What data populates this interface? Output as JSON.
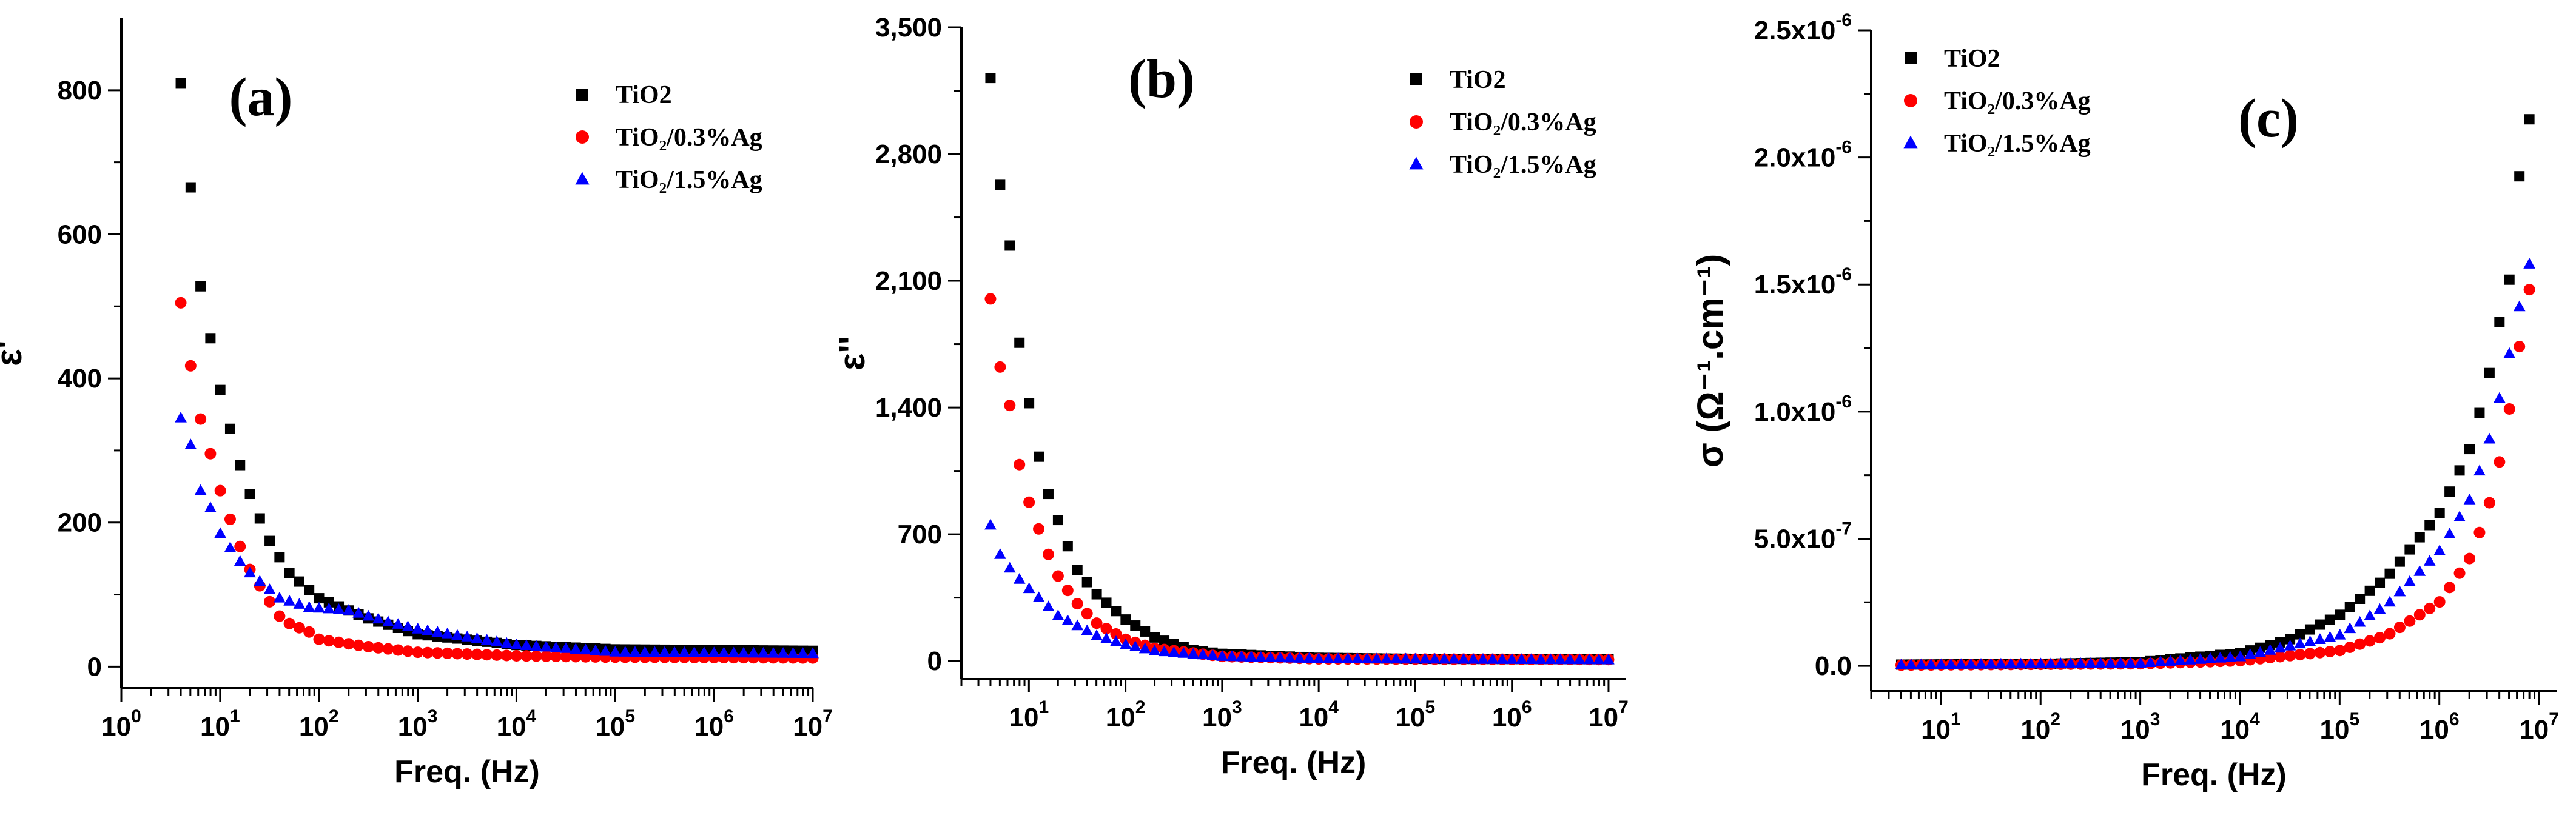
{
  "colors": {
    "TiO2": "#000000",
    "TiO2/0.3%Ag": "#ff0000",
    "TiO2/1.5%Ag": "#0000ff"
  },
  "chart_data": [
    {
      "type": "scatter",
      "panel_label": "(a)",
      "title": "",
      "xlabel": "Freq. (Hz)",
      "ylabel": "ε'",
      "xscale": "log",
      "xlim": [
        1,
        10000000
      ],
      "ylim": [
        -30,
        900
      ],
      "x_tick_labels": [
        "10^0",
        "10^1",
        "10^2",
        "10^3",
        "10^4",
        "10^5",
        "10^6",
        "10^7"
      ],
      "y_tick_labels": [
        "0",
        "200",
        "400",
        "600",
        "800"
      ],
      "y_ticks": [
        0,
        200,
        400,
        600,
        800
      ],
      "legend_position": "top-right",
      "series": [
        {
          "name": "TiO2",
          "legend_label": "TiO2",
          "marker": "square",
          "anchors": [
            [
              4,
              810
            ],
            [
              5,
              670
            ],
            [
              6,
              545
            ],
            [
              8,
              455
            ],
            [
              10,
              385
            ],
            [
              15,
              290
            ],
            [
              20,
              240
            ],
            [
              30,
              180
            ],
            [
              50,
              130
            ],
            [
              100,
              95
            ],
            [
              300,
              68
            ],
            [
              1000,
              45
            ],
            [
              10000,
              30
            ],
            [
              100000,
              24
            ],
            [
              10000000,
              22
            ]
          ]
        },
        {
          "name": "TiO2/0.3%Ag",
          "legend_label": "TiO₂/0.3%Ag",
          "marker": "circle",
          "anchors": [
            [
              4,
              505
            ],
            [
              5,
              420
            ],
            [
              6,
              355
            ],
            [
              8,
              295
            ],
            [
              10,
              245
            ],
            [
              15,
              175
            ],
            [
              20,
              135
            ],
            [
              30,
              95
            ],
            [
              40,
              70
            ],
            [
              50,
              60
            ],
            [
              80,
              48
            ],
            [
              100,
              38
            ],
            [
              300,
              28
            ],
            [
              1000,
              20
            ],
            [
              10000,
              15
            ],
            [
              100000,
              13
            ],
            [
              10000000,
              12
            ]
          ]
        },
        {
          "name": "TiO2/1.5%Ag",
          "legend_label": "TiO₂/1.5%Ag",
          "marker": "triangle",
          "anchors": [
            [
              4,
              345
            ],
            [
              5,
              310
            ],
            [
              6,
              250
            ],
            [
              8,
              220
            ],
            [
              10,
              185
            ],
            [
              15,
              150
            ],
            [
              20,
              130
            ],
            [
              40,
              95
            ],
            [
              80,
              82
            ],
            [
              200,
              78
            ],
            [
              500,
              62
            ],
            [
              1000,
              52
            ],
            [
              10000,
              30
            ],
            [
              100000,
              20
            ],
            [
              10000000,
              18
            ]
          ]
        }
      ]
    },
    {
      "type": "scatter",
      "panel_label": "(b)",
      "title": "",
      "xlabel": "Freq. (Hz)",
      "ylabel": "ε''",
      "xscale": "log",
      "xlim": [
        2,
        15000000
      ],
      "ylim": [
        -100,
        3500
      ],
      "x_tick_labels": [
        "10^1",
        "10^2",
        "10^3",
        "10^4",
        "10^5",
        "10^6",
        "10^7"
      ],
      "y_tick_labels": [
        "0",
        "700",
        "1,400",
        "2,100",
        "2,800",
        "3,500"
      ],
      "y_ticks": [
        0,
        700,
        1400,
        2100,
        2800,
        3500
      ],
      "legend_position": "top-right",
      "series": [
        {
          "name": "TiO2",
          "legend_label": "TiO2",
          "marker": "square",
          "anchors": [
            [
              4,
              3220
            ],
            [
              5,
              2640
            ],
            [
              7,
              2150
            ],
            [
              8,
              1750
            ],
            [
              10,
              1430
            ],
            [
              12,
              1180
            ],
            [
              15,
              960
            ],
            [
              20,
              780
            ],
            [
              25,
              640
            ],
            [
              30,
              520
            ],
            [
              50,
              370
            ],
            [
              100,
              230
            ],
            [
              200,
              130
            ],
            [
              500,
              60
            ],
            [
              1000,
              40
            ],
            [
              10000,
              18
            ],
            [
              100000,
              12
            ],
            [
              10000000,
              10
            ]
          ]
        },
        {
          "name": "TiO2/0.3%Ag",
          "legend_label": "TiO₂/0.3%Ag",
          "marker": "circle",
          "anchors": [
            [
              4,
              2000
            ],
            [
              5,
              1630
            ],
            [
              7,
              1320
            ],
            [
              8,
              1080
            ],
            [
              10,
              880
            ],
            [
              15,
              620
            ],
            [
              20,
              470
            ],
            [
              30,
              330
            ],
            [
              50,
              210
            ],
            [
              100,
              120
            ],
            [
              200,
              70
            ],
            [
              1000,
              25
            ],
            [
              10000,
              12
            ],
            [
              10000000,
              8
            ]
          ]
        },
        {
          "name": "TiO2/1.5%Ag",
          "legend_label": "TiO₂/1.5%Ag",
          "marker": "triangle",
          "anchors": [
            [
              4,
              750
            ],
            [
              5,
              590
            ],
            [
              7,
              480
            ],
            [
              10,
              400
            ],
            [
              20,
              250
            ],
            [
              50,
              140
            ],
            [
              100,
              90
            ],
            [
              200,
              55
            ],
            [
              1000,
              25
            ],
            [
              10000,
              12
            ],
            [
              10000000,
              6
            ]
          ]
        }
      ]
    },
    {
      "type": "scatter",
      "panel_label": "(c)",
      "title": "",
      "xlabel": "Freq. (Hz)",
      "ylabel": "σ (Ω⁻¹.cm⁻¹)",
      "xscale": "log",
      "xlim": [
        2,
        15000000
      ],
      "ylim": [
        -1e-07,
        2.5e-06
      ],
      "x_tick_labels": [
        "10^1",
        "10^2",
        "10^3",
        "10^4",
        "10^5",
        "10^6",
        "10^7"
      ],
      "y_tick_labels": [
        "0.0",
        "5.0x10^-7",
        "1.0x10^-6",
        "1.5x10^-6",
        "2.0x10^-6",
        "2.5x10^-6"
      ],
      "y_ticks": [
        0,
        5e-07,
        1e-06,
        1.5e-06,
        2e-06,
        2.5e-06
      ],
      "legend_position": "top-left",
      "series": [
        {
          "name": "TiO2",
          "legend_label": "TiO2",
          "marker": "square",
          "anchors": [
            [
              4,
              5e-09
            ],
            [
              100,
              8e-09
            ],
            [
              1000,
              1.5e-08
            ],
            [
              10000,
              5e-08
            ],
            [
              30000,
              1e-07
            ],
            [
              100000,
              2e-07
            ],
            [
              300000,
              3.5e-07
            ],
            [
              1000000,
              6e-07
            ],
            [
              2000000,
              8.5e-07
            ],
            [
              3000000,
              1.1e-06
            ],
            [
              4000000,
              1.35e-06
            ],
            [
              5000000,
              1.5e-06
            ],
            [
              6000000,
              1.87e-06
            ],
            [
              8000000,
              2.15e-06
            ]
          ]
        },
        {
          "name": "TiO2/0.3%Ag",
          "legend_label": "TiO₂/0.3%Ag",
          "marker": "circle",
          "anchors": [
            [
              4,
              3e-09
            ],
            [
              1000,
              8e-09
            ],
            [
              10000,
              2e-08
            ],
            [
              100000,
              6e-08
            ],
            [
              300000,
              1.2e-07
            ],
            [
              1000000,
              2.5e-07
            ],
            [
              2000000,
              4.2e-07
            ],
            [
              3000000,
              6e-07
            ],
            [
              4000000,
              8e-07
            ],
            [
              5000000,
              1e-06
            ],
            [
              6000000,
              1.2e-06
            ],
            [
              8000000,
              1.48e-06
            ]
          ]
        },
        {
          "name": "TiO2/1.5%Ag",
          "legend_label": "TiO₂/1.5%Ag",
          "marker": "triangle",
          "anchors": [
            [
              4,
              4e-09
            ],
            [
              1000,
              1e-08
            ],
            [
              10000,
              3.5e-08
            ],
            [
              100000,
              1.2e-07
            ],
            [
              300000,
              2.4e-07
            ],
            [
              1000000,
              4.5e-07
            ],
            [
              2000000,
              6.5e-07
            ],
            [
              3000000,
              8.5e-07
            ],
            [
              4000000,
              1.05e-06
            ],
            [
              5000000,
              1.22e-06
            ],
            [
              6000000,
              1.37e-06
            ],
            [
              8000000,
              1.58e-06
            ]
          ]
        }
      ]
    }
  ]
}
